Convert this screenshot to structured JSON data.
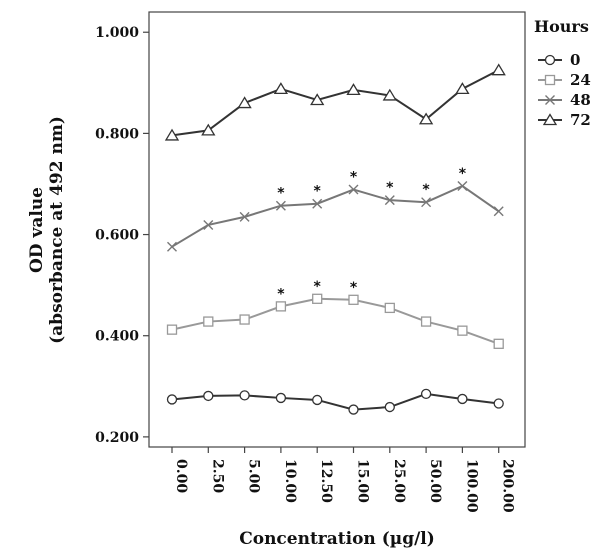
{
  "chart_data": {
    "type": "line",
    "title": "",
    "xlabel": "Concentration (µg/l)",
    "ylabel_line1": "OD value",
    "ylabel_line2": "(absorbance at 492 nm)",
    "ylim": [
      0.18,
      1.04
    ],
    "yticks": [
      0.2,
      0.4,
      0.6,
      0.8,
      1.0
    ],
    "ytick_labels": [
      "0.200",
      "0.400",
      "0.600",
      "0.800",
      "1.000"
    ],
    "categories": [
      "0.00",
      "2.50",
      "5.00",
      "10.00",
      "12.50",
      "15.00",
      "25.00",
      "50.00",
      "100.00",
      "200.00"
    ],
    "grid": false,
    "legend": {
      "title": "Hours",
      "position": "right"
    },
    "series": [
      {
        "name": "0",
        "marker": "circle",
        "color": "#333333",
        "values": [
          0.274,
          0.281,
          0.282,
          0.277,
          0.273,
          0.254,
          0.259,
          0.285,
          0.275,
          0.266
        ],
        "significant": []
      },
      {
        "name": "24",
        "marker": "square",
        "color": "#999999",
        "values": [
          0.412,
          0.428,
          0.432,
          0.458,
          0.473,
          0.471,
          0.455,
          0.428,
          0.41,
          0.384
        ],
        "significant": [
          3,
          4,
          5
        ]
      },
      {
        "name": "48",
        "marker": "x",
        "color": "#777777",
        "values": [
          0.576,
          0.619,
          0.635,
          0.657,
          0.661,
          0.689,
          0.668,
          0.664,
          0.696,
          0.646
        ],
        "significant": [
          3,
          4,
          5,
          6,
          7,
          8
        ]
      },
      {
        "name": "72",
        "marker": "triangle",
        "color": "#333333",
        "values": [
          0.796,
          0.806,
          0.86,
          0.888,
          0.866,
          0.886,
          0.875,
          0.828,
          0.888,
          0.925
        ],
        "significant": []
      }
    ],
    "annotation_symbol": "*"
  }
}
